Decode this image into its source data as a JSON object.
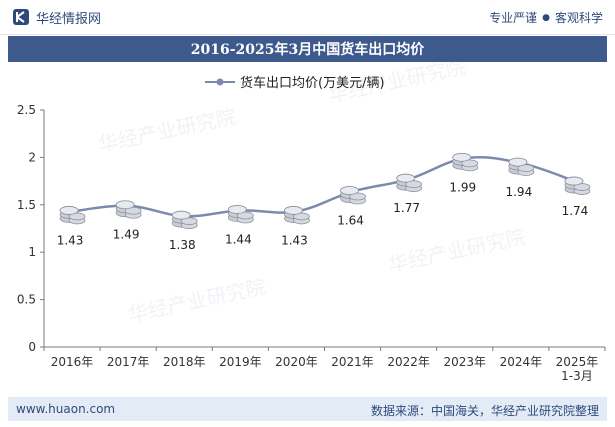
{
  "header": {
    "brand": "华经情报网",
    "slogan_left": "专业严谨",
    "slogan_right": "客观科学"
  },
  "title": "2016-2025年3月中国货车出口均价",
  "footer": {
    "url": "www.huaon.com",
    "source": "数据来源：中国海关，华经产业研究院整理"
  },
  "colors": {
    "title_bg": "#3e5a8d",
    "line": "#7d8ab0",
    "footer_bg": "#e3ebf6"
  },
  "chart_data": {
    "type": "line",
    "title": "2016-2025年3月中国货车出口均价",
    "legend": "货车出口均价(万美元/辆)",
    "legend_position": "top-center",
    "categories": [
      "2016年",
      "2017年",
      "2018年",
      "2019年",
      "2020年",
      "2021年",
      "2022年",
      "2023年",
      "2024年",
      "2025年\n1-3月"
    ],
    "series": [
      {
        "name": "货车出口均价(万美元/辆)",
        "values": [
          1.43,
          1.49,
          1.38,
          1.44,
          1.43,
          1.64,
          1.77,
          1.99,
          1.94,
          1.74
        ],
        "labels": [
          "1.43",
          "1.49",
          "1.38",
          "1.44",
          "1.43",
          "1.64",
          "1.77",
          "1.99",
          "1.94",
          "1.74"
        ]
      }
    ],
    "yticks": [
      "0",
      "0.5",
      "1",
      "1.5",
      "2",
      "2.5"
    ],
    "ylim": [
      0,
      2.5
    ],
    "grid": false,
    "xlabel": "",
    "ylabel": ""
  }
}
